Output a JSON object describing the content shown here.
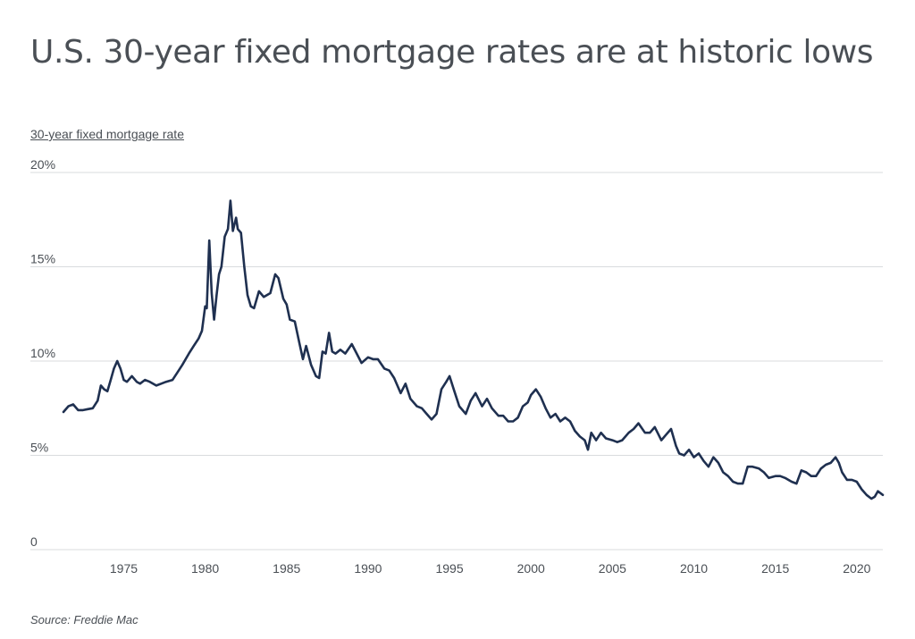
{
  "chart_data": {
    "type": "line",
    "title": "U.S. 30-year fixed mortgage rates are at historic lows",
    "ylabel": "30-year fixed mortgage rate",
    "xlabel": "",
    "source": "Source: Freddie Mac",
    "x_ticks": [
      "1975",
      "1980",
      "1985",
      "1990",
      "1995",
      "2000",
      "2005",
      "2010",
      "2015",
      "2020"
    ],
    "y_ticks": [
      {
        "value": 0,
        "label": "0"
      },
      {
        "value": 5,
        "label": "5%"
      },
      {
        "value": 10,
        "label": "10%"
      },
      {
        "value": 15,
        "label": "15%"
      },
      {
        "value": 20,
        "label": "20%"
      }
    ],
    "xlim": [
      1971.3,
      2021.6
    ],
    "ylim": [
      0,
      20
    ],
    "grid": true,
    "line_color": "#1f3050",
    "series": [
      {
        "x": [
          1971.3,
          1971.6,
          1971.9,
          1972.2,
          1972.5,
          1972.8,
          1973.1,
          1973.4,
          1973.6,
          1973.8,
          1974.0,
          1974.2,
          1974.4,
          1974.6,
          1974.8,
          1975.0,
          1975.2,
          1975.5,
          1975.8,
          1976.0,
          1976.3,
          1976.6,
          1977.0,
          1977.3,
          1977.6,
          1978.0,
          1978.3,
          1978.6,
          1979.0,
          1979.3,
          1979.6,
          1979.8,
          1980.0,
          1980.1,
          1980.25,
          1980.4,
          1980.55,
          1980.7,
          1980.85,
          1981.0,
          1981.2,
          1981.4,
          1981.55,
          1981.7,
          1981.9,
          1982.0,
          1982.2,
          1982.4,
          1982.6,
          1982.8,
          1983.0,
          1983.3,
          1983.6,
          1984.0,
          1984.3,
          1984.5,
          1984.8,
          1985.0,
          1985.2,
          1985.5,
          1985.8,
          1986.0,
          1986.2,
          1986.5,
          1986.8,
          1987.0,
          1987.2,
          1987.4,
          1987.6,
          1987.8,
          1988.0,
          1988.3,
          1988.6,
          1989.0,
          1989.3,
          1989.6,
          1990.0,
          1990.3,
          1990.6,
          1991.0,
          1991.3,
          1991.6,
          1992.0,
          1992.3,
          1992.6,
          1993.0,
          1993.3,
          1993.6,
          1993.9,
          1994.2,
          1994.5,
          1994.8,
          1995.0,
          1995.3,
          1995.6,
          1996.0,
          1996.3,
          1996.6,
          1997.0,
          1997.3,
          1997.6,
          1998.0,
          1998.3,
          1998.6,
          1998.9,
          1999.2,
          1999.5,
          1999.8,
          2000.0,
          2000.3,
          2000.6,
          2000.9,
          2001.2,
          2001.5,
          2001.8,
          2002.1,
          2002.4,
          2002.7,
          2003.0,
          2003.3,
          2003.5,
          2003.7,
          2004.0,
          2004.3,
          2004.6,
          2005.0,
          2005.3,
          2005.6,
          2006.0,
          2006.3,
          2006.6,
          2007.0,
          2007.3,
          2007.6,
          2008.0,
          2008.3,
          2008.6,
          2008.9,
          2009.1,
          2009.4,
          2009.7,
          2010.0,
          2010.3,
          2010.6,
          2010.9,
          2011.2,
          2011.5,
          2011.8,
          2012.1,
          2012.4,
          2012.7,
          2013.0,
          2013.3,
          2013.6,
          2014.0,
          2014.3,
          2014.6,
          2015.0,
          2015.3,
          2015.6,
          2016.0,
          2016.3,
          2016.6,
          2016.9,
          2017.2,
          2017.5,
          2017.8,
          2018.1,
          2018.4,
          2018.7,
          2018.9,
          2019.1,
          2019.4,
          2019.7,
          2020.0,
          2020.3,
          2020.6,
          2020.9,
          2021.1,
          2021.3,
          2021.6
        ],
        "values": [
          7.3,
          7.6,
          7.7,
          7.4,
          7.4,
          7.45,
          7.5,
          7.9,
          8.7,
          8.5,
          8.4,
          9.0,
          9.6,
          10.0,
          9.6,
          9.0,
          8.9,
          9.2,
          8.9,
          8.8,
          9.0,
          8.9,
          8.7,
          8.8,
          8.9,
          9.0,
          9.4,
          9.8,
          10.4,
          10.8,
          11.2,
          11.6,
          12.9,
          12.8,
          16.4,
          13.6,
          12.2,
          13.5,
          14.6,
          15.0,
          16.6,
          17.0,
          18.5,
          16.9,
          17.6,
          17.0,
          16.8,
          15.0,
          13.5,
          12.9,
          12.8,
          13.7,
          13.4,
          13.6,
          14.6,
          14.4,
          13.3,
          13.0,
          12.2,
          12.1,
          10.9,
          10.1,
          10.8,
          9.8,
          9.2,
          9.1,
          10.5,
          10.4,
          11.5,
          10.5,
          10.4,
          10.6,
          10.4,
          10.9,
          10.4,
          9.9,
          10.2,
          10.1,
          10.1,
          9.6,
          9.5,
          9.1,
          8.3,
          8.8,
          8.0,
          7.6,
          7.5,
          7.2,
          6.9,
          7.2,
          8.5,
          8.9,
          9.2,
          8.4,
          7.6,
          7.2,
          7.9,
          8.3,
          7.6,
          8.0,
          7.5,
          7.1,
          7.1,
          6.8,
          6.8,
          7.0,
          7.6,
          7.8,
          8.2,
          8.5,
          8.1,
          7.5,
          7.0,
          7.2,
          6.8,
          7.0,
          6.8,
          6.3,
          6.0,
          5.8,
          5.3,
          6.2,
          5.8,
          6.2,
          5.9,
          5.8,
          5.7,
          5.8,
          6.2,
          6.4,
          6.7,
          6.2,
          6.2,
          6.5,
          5.8,
          6.1,
          6.4,
          5.5,
          5.1,
          5.0,
          5.3,
          4.9,
          5.1,
          4.7,
          4.4,
          4.9,
          4.6,
          4.1,
          3.9,
          3.6,
          3.5,
          3.5,
          4.4,
          4.4,
          4.3,
          4.1,
          3.8,
          3.9,
          3.9,
          3.8,
          3.6,
          3.5,
          4.2,
          4.1,
          3.9,
          3.9,
          4.3,
          4.5,
          4.6,
          4.9,
          4.6,
          4.1,
          3.7,
          3.7,
          3.6,
          3.2,
          2.9,
          2.7,
          2.8,
          3.1,
          2.9
        ]
      }
    ]
  }
}
